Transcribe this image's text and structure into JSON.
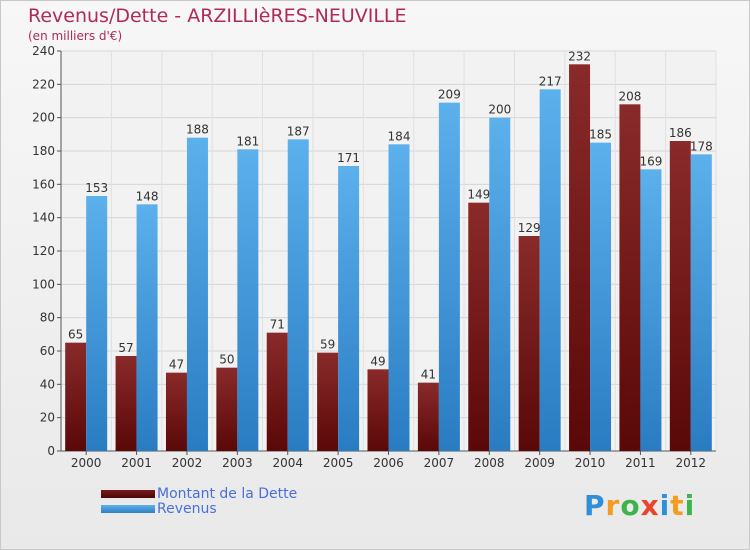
{
  "chart_data": {
    "type": "bar",
    "title": "Revenus/Dette - ARZILLIèRES-NEUVILLE",
    "subtitle": "(en milliers d'€)",
    "categories": [
      "2000",
      "2001",
      "2002",
      "2003",
      "2004",
      "2005",
      "2006",
      "2007",
      "2008",
      "2009",
      "2010",
      "2011",
      "2012"
    ],
    "series": [
      {
        "name": "Montant de la Dette",
        "color": "#7a1a1a",
        "values": [
          65,
          57,
          47,
          50,
          71,
          59,
          49,
          41,
          149,
          129,
          232,
          208,
          186
        ]
      },
      {
        "name": "Revenus",
        "color": "#4a9fe0",
        "values": [
          153,
          148,
          188,
          181,
          187,
          171,
          184,
          209,
          200,
          217,
          185,
          169,
          178
        ]
      }
    ],
    "ylim": [
      0,
      240
    ],
    "yticks": [
      0,
      20,
      40,
      60,
      80,
      100,
      120,
      140,
      160,
      180,
      200,
      220,
      240
    ],
    "grid": true,
    "legend_position": "bottom-left"
  },
  "logo": {
    "letters": [
      {
        "ch": "P",
        "color": "#2f8fd8"
      },
      {
        "ch": "r",
        "color": "#f39c1f"
      },
      {
        "ch": "o",
        "color": "#3cb44b"
      },
      {
        "ch": "x",
        "color": "#e8452c"
      },
      {
        "ch": "i",
        "color": "#2f8fd8"
      },
      {
        "ch": "t",
        "color": "#f39c1f"
      },
      {
        "ch": "i",
        "color": "#3cb44b"
      }
    ]
  }
}
